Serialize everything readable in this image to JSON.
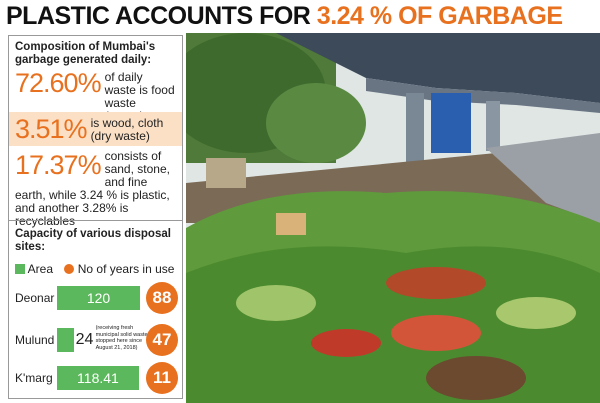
{
  "title": {
    "lead": "PLASTIC ACCOUNTS FOR",
    "highlight": "3.24 % OF GARBAGE"
  },
  "composition": {
    "heading": "Composition of Mumbai's garbage generated daily:",
    "items": [
      {
        "value": "72.60%",
        "text": "of daily waste is food waste (organic-wet waste)"
      },
      {
        "value": "3.51%",
        "text": "is wood, cloth (dry waste)"
      },
      {
        "value": "17.37%",
        "text": "consists of sand, stone, and fine earth, while 3.24 % is plastic, and another 3.28% is recyclables"
      }
    ]
  },
  "capacity": {
    "heading": "Capacity of various disposal sites:",
    "legend": {
      "area": "Area",
      "years": "No of years in use"
    },
    "sites": [
      {
        "name": "Deonar",
        "area": 120,
        "years": 88
      },
      {
        "name": "Mulund",
        "area": 24,
        "note": "(receiving fresh municipal solid waste is stopped here since August 21, 2018)",
        "years": 47
      },
      {
        "name": "K'marg",
        "area": 118.41,
        "years": 11
      }
    ]
  }
}
